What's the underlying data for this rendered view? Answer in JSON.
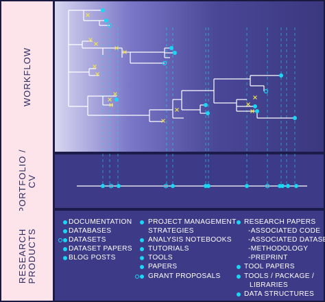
{
  "sections": {
    "workflow": "WORKFLOW",
    "portfolio_line1": "PORTFOLIO /",
    "portfolio_line2": "CV",
    "products_line1": "RESEARCH",
    "products_line2": "PRODUCTS"
  },
  "legend": {
    "col1": [
      "DOCUMENTATION",
      "DATABASES",
      "DATASETS",
      "DATASET PAPERS",
      "BLOG POSTS"
    ],
    "col2": [
      "PROJECT MANAGEMENT",
      "STRATEGIES",
      "ANALYSIS NOTEBOOKS",
      "TUTORIALS",
      "TOOLS",
      "PAPERS",
      "GRANT PROPOSALS"
    ],
    "col3": [
      "RESEARCH PAPERS",
      "-ASSOCIATED CODE",
      "-ASSOCIATED DATASET",
      "-METHODOLOGY",
      "-PREPRINT",
      "TOOL PAPERS",
      "TOOLS / PACKAGE /",
      "LIBRARIES",
      "DATA STRUCTURES"
    ]
  },
  "colors": {
    "accent": "#19d7f5",
    "cross": "#f2e24b",
    "line": "#ffffff",
    "panel": "#3d3a88",
    "sidebar": "#fde4ea"
  }
}
